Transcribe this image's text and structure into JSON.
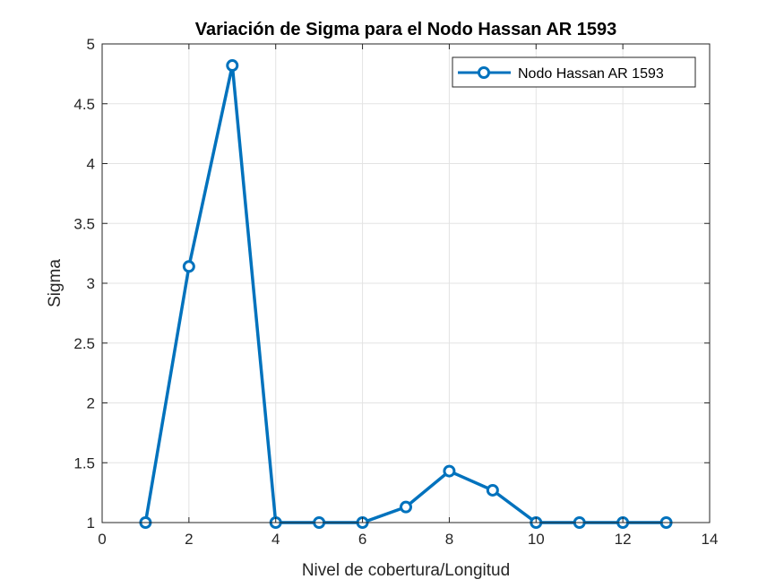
{
  "chart_data": {
    "type": "line",
    "title": "Variación de Sigma para el Nodo Hassan AR 1593",
    "xlabel": "Nivel de cobertura/Longitud",
    "ylabel": "Sigma",
    "xlim": [
      0,
      14
    ],
    "ylim": [
      1,
      5
    ],
    "xticks": [
      0,
      2,
      4,
      6,
      8,
      10,
      12,
      14
    ],
    "yticks": [
      1,
      1.5,
      2,
      2.5,
      3,
      3.5,
      4,
      4.5,
      5
    ],
    "xtick_labels": [
      "0",
      "2",
      "4",
      "6",
      "8",
      "10",
      "12",
      "14"
    ],
    "ytick_labels": [
      "1",
      "1.5",
      "2",
      "2.5",
      "3",
      "3.5",
      "4",
      "4.5",
      "5"
    ],
    "grid": true,
    "legend_position": "top-right",
    "marker": "circle",
    "series": [
      {
        "name": "Nodo Hassan AR 1593",
        "color": "#0072BD",
        "x": [
          1,
          2,
          3,
          4,
          5,
          6,
          7,
          8,
          9,
          10,
          11,
          12,
          13
        ],
        "y": [
          1,
          3.14,
          4.82,
          1,
          1,
          1,
          1.13,
          1.43,
          1.27,
          1,
          1,
          1,
          1
        ]
      }
    ]
  }
}
